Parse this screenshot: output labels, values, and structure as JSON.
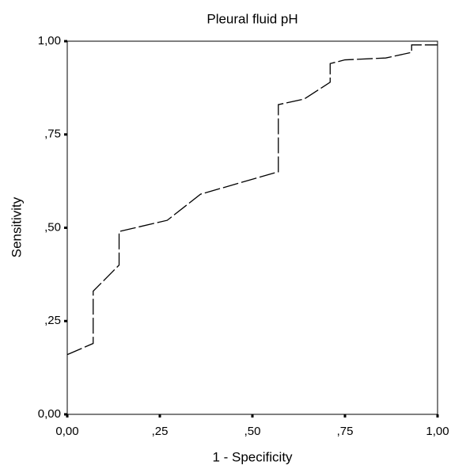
{
  "chart_data": {
    "type": "line",
    "title": "Pleural fluid pH",
    "x_label": "1 - Specificity",
    "y_label": "Sensitivity",
    "x": [
      0,
      0.07,
      0.07,
      0.14,
      0.14,
      0.27,
      0.36,
      0.5,
      0.57,
      0.57,
      0.64,
      0.71,
      0.71,
      0.75,
      0.86,
      0.93,
      0.93,
      1.0
    ],
    "values": [
      0.16,
      0.19,
      0.33,
      0.4,
      0.49,
      0.52,
      0.59,
      0.63,
      0.65,
      0.83,
      0.845,
      0.89,
      0.94,
      0.95,
      0.955,
      0.97,
      0.99,
      0.99
    ],
    "color": "#000000",
    "xlim": [
      0,
      1
    ],
    "ylim": [
      0,
      1
    ],
    "xticks": [
      {
        "value": 0,
        "label": "0,00"
      },
      {
        "value": 0.25,
        "label": ",25"
      },
      {
        "value": 0.5,
        "label": ",50"
      },
      {
        "value": 0.75,
        "label": ",75"
      },
      {
        "value": 1,
        "label": "1,00"
      }
    ],
    "yticks": [
      {
        "value": 0,
        "label": "0,00"
      },
      {
        "value": 0.25,
        "label": ",25"
      },
      {
        "value": 0.5,
        "label": ",50"
      },
      {
        "value": 0.75,
        "label": ",75"
      },
      {
        "value": 1,
        "label": "1,00"
      }
    ]
  }
}
